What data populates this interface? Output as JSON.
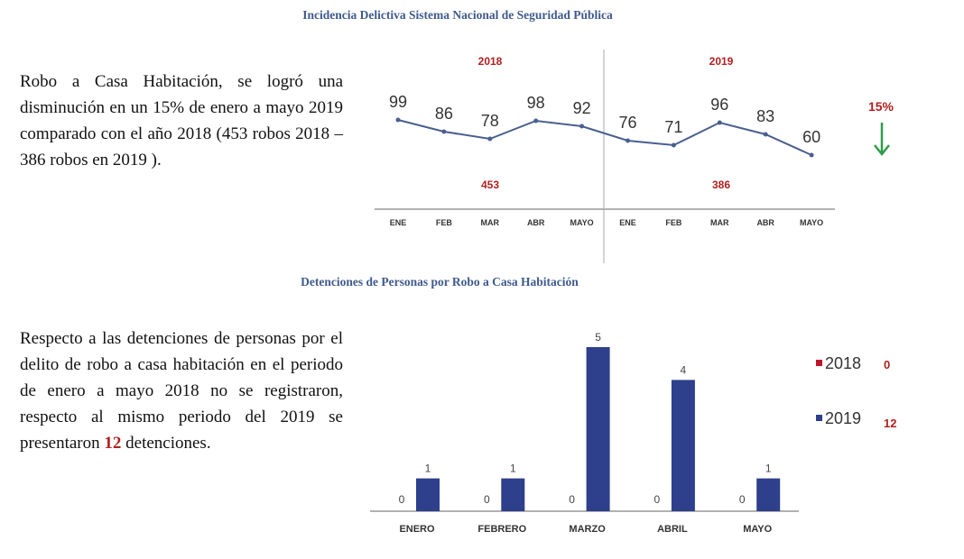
{
  "title_top": "Incidencia Delictiva Sistema Nacional de Seguridad Pública",
  "title_bottom": "Detenciones de Personas por Robo a Casa Habitación",
  "paragraph_top": "Robo a Casa Habitación, se logró una disminución en un 15% de enero a mayo 2019 comparado con el año 2018 (453 robos 2018 – 386 robos en 2019 ).",
  "paragraph_bottom_pre": "Respecto a las detenciones de personas por el delito de robo a casa habitación en el periodo de enero a mayo 2018 no se registraron, respecto al mismo periodo del 2019 se presentaron",
  "paragraph_bottom_num": "12",
  "paragraph_bottom_post": " detenciones.",
  "chart_data": [
    {
      "type": "line",
      "categories": [
        "ENE",
        "FEB",
        "MAR",
        "ABR",
        "MAYO",
        "ENE",
        "FEB",
        "MAR",
        "ABR",
        "MAYO"
      ],
      "values": [
        99,
        86,
        78,
        98,
        92,
        76,
        71,
        96,
        83,
        60
      ],
      "groups": [
        {
          "label": "2018",
          "total": "453"
        },
        {
          "label": "2019",
          "total": "386"
        }
      ],
      "annotation": {
        "text": "15%",
        "icon": "arrow-down-icon",
        "color": "#2e9e4a"
      },
      "line_color": "#4a5f8f",
      "label_color": "#b21f1f",
      "grid": false
    },
    {
      "type": "bar",
      "categories": [
        "ENERO",
        "FEBRERO",
        "MARZO",
        "ABRIL",
        "MAYO"
      ],
      "series": [
        {
          "name": "2018",
          "values": [
            0,
            0,
            0,
            0,
            0
          ],
          "total": "0",
          "color": "#c0142a"
        },
        {
          "name": "2019",
          "values": [
            1,
            1,
            5,
            4,
            1
          ],
          "total": "12",
          "color": "#2e3f8c"
        }
      ],
      "legend": "right",
      "grid": false
    }
  ]
}
